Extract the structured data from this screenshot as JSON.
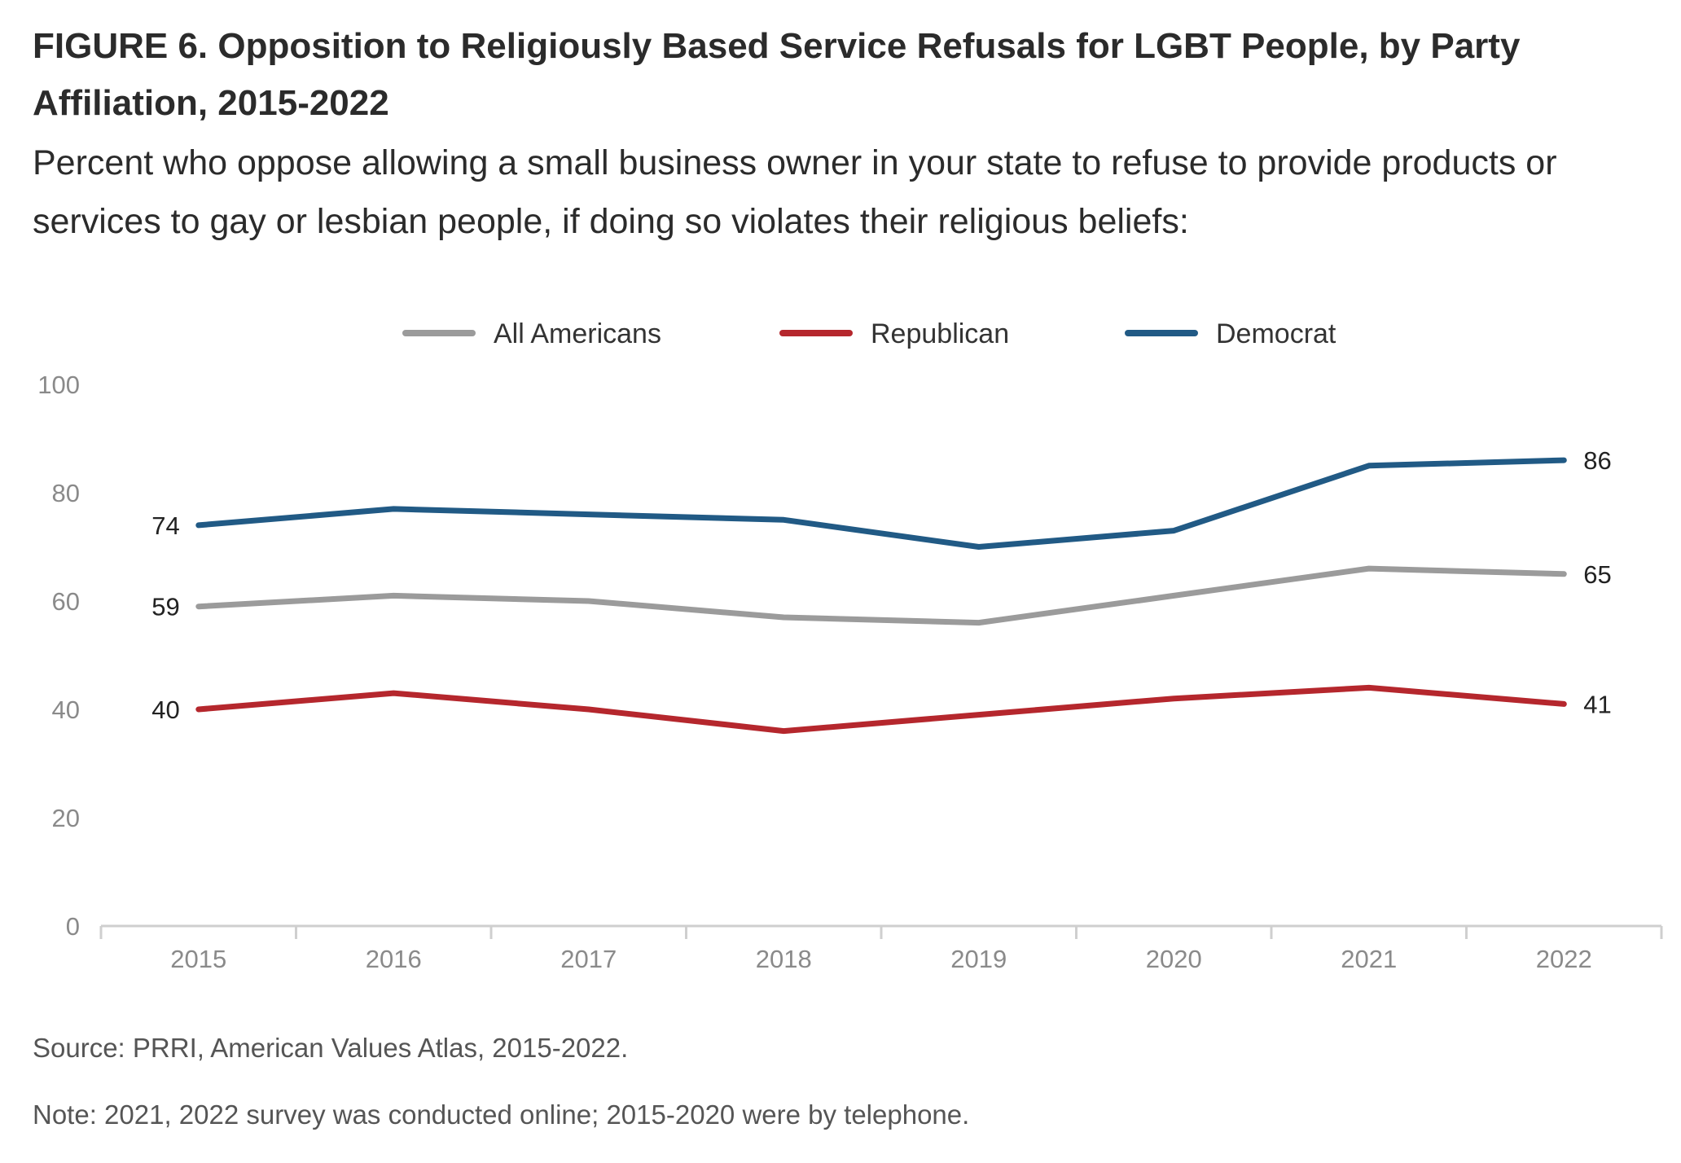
{
  "title": "FIGURE 6.  Opposition to Religiously Based Service Refusals for LGBT People, by Party Affiliation, 2015-2022",
  "subtitle": "Percent who oppose allowing a small business owner in your state to refuse to provide products or services to gay or lesbian people, if doing so violates their religious beliefs:",
  "source": "Source: PRRI, American Values Atlas, 2015-2022.",
  "note": "Note: 2021, 2022 survey was conducted online; 2015-2020 were by telephone.",
  "chart_data": {
    "type": "line",
    "x": [
      "2015",
      "2016",
      "2017",
      "2018",
      "2019",
      "2020",
      "2021",
      "2022"
    ],
    "ylim": [
      0,
      100
    ],
    "yticks": [
      0,
      20,
      40,
      60,
      80,
      100
    ],
    "grid": false,
    "legend_position": "top",
    "series": [
      {
        "name": "All Americans",
        "color": "#9b9b9b",
        "values": [
          59,
          61,
          60,
          57,
          56,
          61,
          66,
          65
        ],
        "labels": {
          "first": "59",
          "last": "65"
        }
      },
      {
        "name": "Republican",
        "color": "#b5272d",
        "values": [
          40,
          43,
          40,
          36,
          39,
          42,
          44,
          41
        ],
        "labels": {
          "first": "40",
          "last": "41"
        }
      },
      {
        "name": "Democrat",
        "color": "#215a85",
        "values": [
          74,
          77,
          76,
          75,
          70,
          73,
          85,
          86
        ],
        "labels": {
          "first": "74",
          "last": "86"
        }
      }
    ]
  }
}
